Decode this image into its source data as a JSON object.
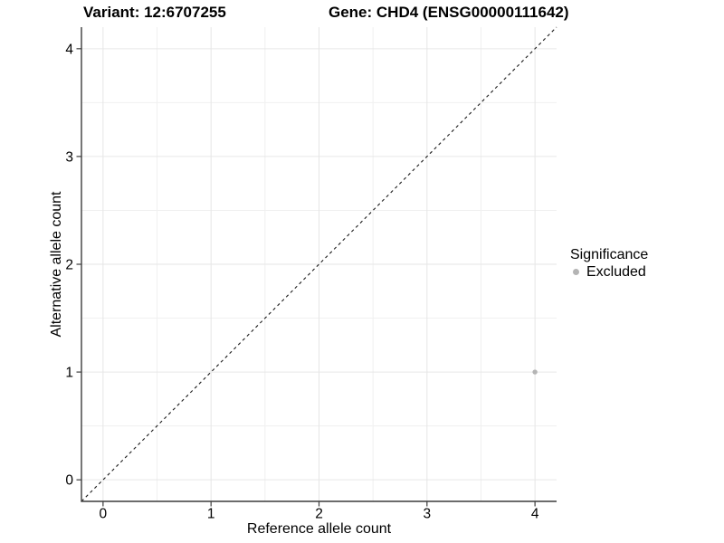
{
  "title": {
    "variant": "Variant: 12:6707255",
    "gene": "Gene: CHD4 (ENSG00000111642)"
  },
  "axes": {
    "x_label": "Reference allele count",
    "y_label": "Alternative allele count"
  },
  "legend": {
    "title": "Significance",
    "items": [
      {
        "label": "Excluded",
        "color": "#b4b4b4"
      }
    ]
  },
  "chart_data": {
    "type": "scatter",
    "title": "Variant: 12:6707255  /  Gene: CHD4 (ENSG00000111642)",
    "xlabel": "Reference allele count",
    "ylabel": "Alternative allele count",
    "xlim": [
      -0.2,
      4.2
    ],
    "ylim": [
      -0.2,
      4.2
    ],
    "x_ticks": [
      0,
      1,
      2,
      3,
      4
    ],
    "y_ticks": [
      0,
      1,
      2,
      3,
      4
    ],
    "x_minor": [
      0.5,
      1.5,
      2.5,
      3.5
    ],
    "y_minor": [
      0.5,
      1.5,
      2.5,
      3.5
    ],
    "grid": {
      "major_color": "#e6e6e6",
      "minor_color": "#f0f0f0"
    },
    "axis_color": "#3c3c3c",
    "reference_line": {
      "type": "identity",
      "slope": 1,
      "intercept": 0,
      "dashed": true,
      "color": "#1a1a1a"
    },
    "series": [
      {
        "name": "Excluded",
        "color": "#b4b4b4",
        "points": [
          {
            "x": 4,
            "y": 1
          }
        ]
      }
    ],
    "point_radius": 2.7
  }
}
